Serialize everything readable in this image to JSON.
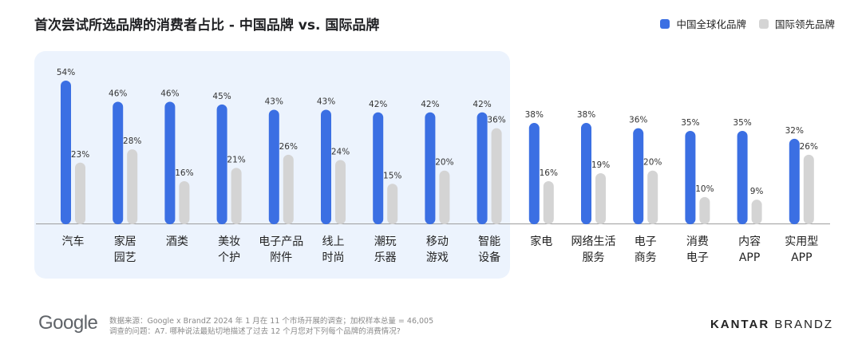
{
  "title": "首次尝试所选品牌的消费者占比 - 中国品牌 vs. 国际品牌",
  "legend": {
    "china": "中国全球化品牌",
    "intl": "国际领先品牌"
  },
  "colors": {
    "china": "#3b6fe3",
    "intl": "#d4d4d4",
    "highlight": "#ecf3fd"
  },
  "chart_data": {
    "type": "bar",
    "categories": [
      [
        "汽车"
      ],
      [
        "家居",
        "园艺"
      ],
      [
        "酒类"
      ],
      [
        "美妆",
        "个护"
      ],
      [
        "电子产品",
        "附件"
      ],
      [
        "线上",
        "时尚"
      ],
      [
        "潮玩",
        "乐器"
      ],
      [
        "移动",
        "游戏"
      ],
      [
        "智能",
        "设备"
      ],
      [
        "家电"
      ],
      [
        "网络生活",
        "服务"
      ],
      [
        "电子",
        "商务"
      ],
      [
        "消费",
        "电子"
      ],
      [
        "内容",
        "APP"
      ],
      [
        "实用型",
        "APP"
      ]
    ],
    "series": [
      {
        "name": "中国全球化品牌",
        "values": [
          54,
          46,
          46,
          45,
          43,
          43,
          42,
          42,
          42,
          38,
          38,
          36,
          35,
          35,
          32
        ]
      },
      {
        "name": "国际领先品牌",
        "values": [
          23,
          28,
          16,
          21,
          26,
          24,
          15,
          20,
          36,
          16,
          19,
          20,
          10,
          9,
          26
        ]
      }
    ],
    "value_suffix": "%",
    "highlighted_categories": 9,
    "ylim": [
      0,
      54
    ],
    "grid": false,
    "legend_position": "top-right"
  },
  "footer": {
    "logo": "Google",
    "source": "数据来源：Google x BrandZ 2024 年 1 月在 11 个市场开展的调查；加权样本总量 = 46,005",
    "question": "调查的问题：A7. 哪种说法最贴切地描述了过去 12 个月您对下列每个品牌的消费情况?",
    "brand_bold": "KANTAR",
    "brand_light": "BRANDZ"
  }
}
